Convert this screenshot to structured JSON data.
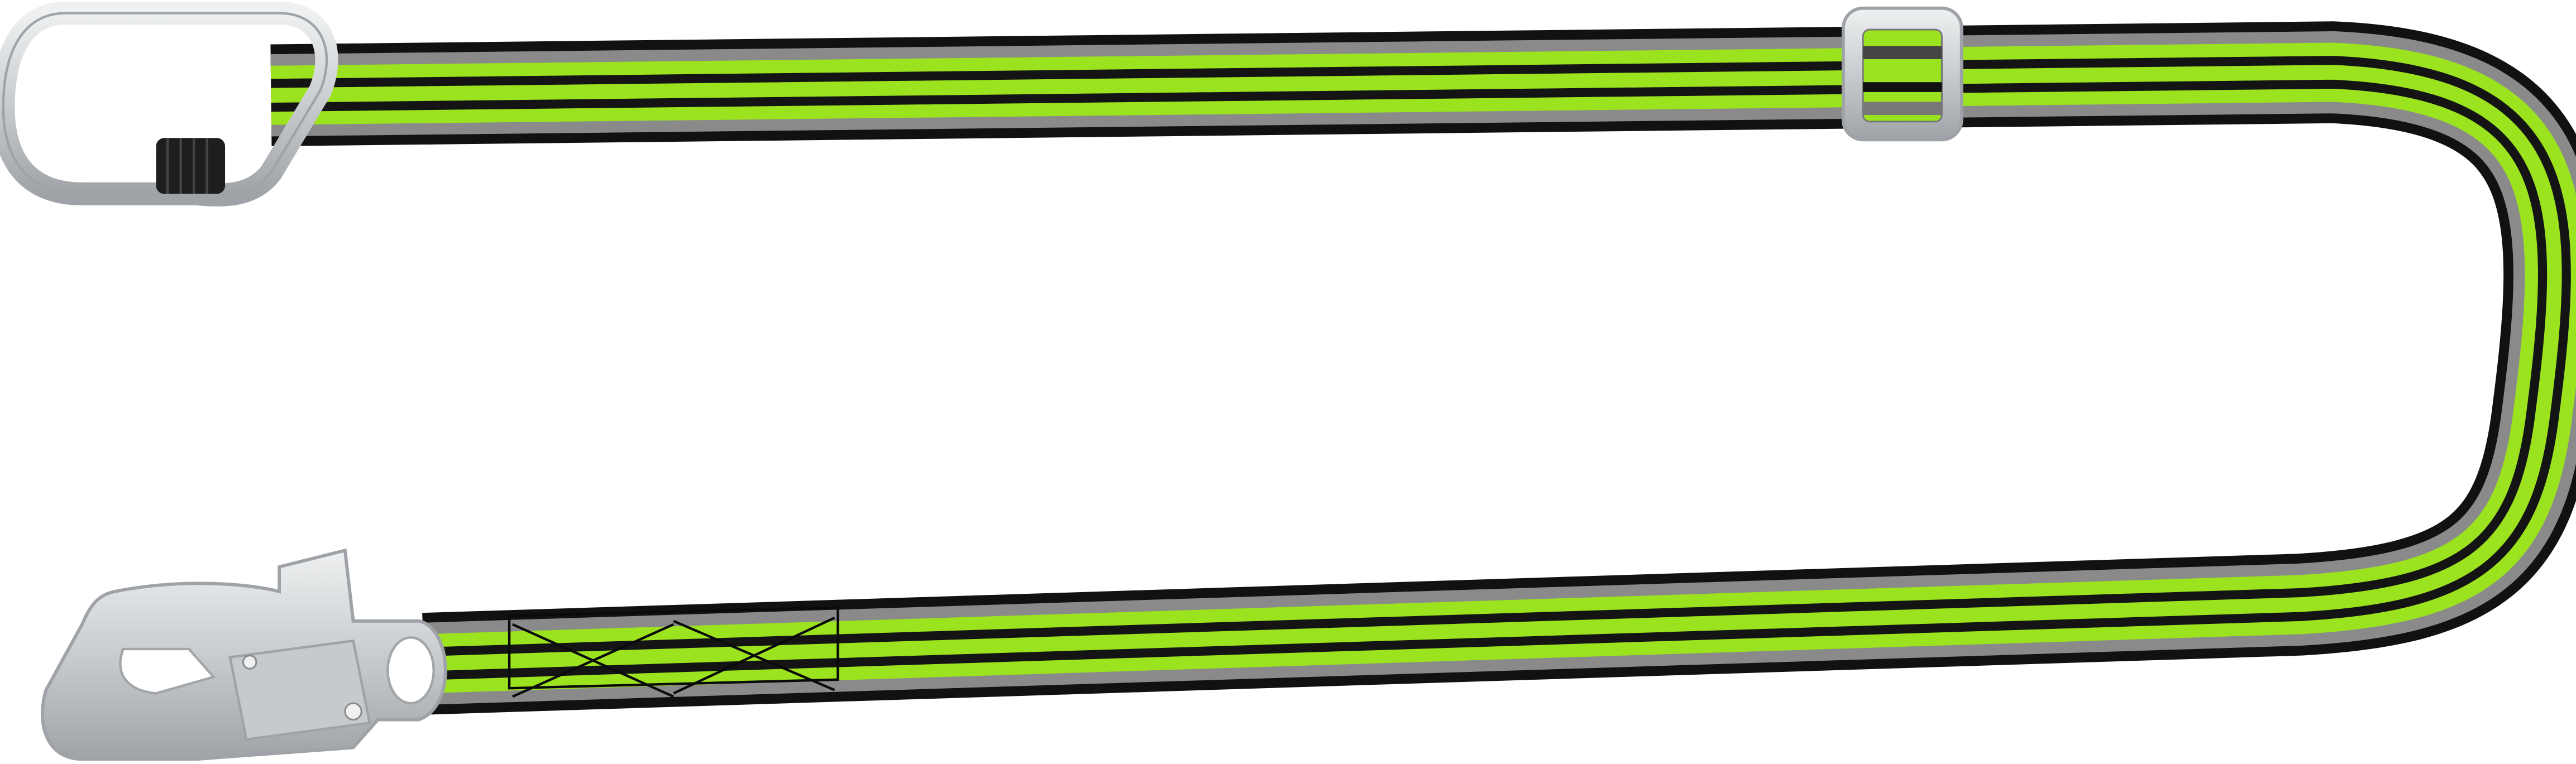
{
  "product": {
    "colors": {
      "webbing_edge": "#111111",
      "webbing_gray": "#8a8a8a",
      "webbing_lime": "#9be31e",
      "webbing_center": "#141414",
      "metal": "#d4d6d8",
      "metal_shadow": "#a3a6a9",
      "lock_sleeve": "#1e1e1e",
      "background": "#ffffff"
    },
    "components": [
      "carabiner-icon",
      "adjuster-buckle-icon",
      "snap-hook-icon",
      "webbing-strap"
    ]
  }
}
